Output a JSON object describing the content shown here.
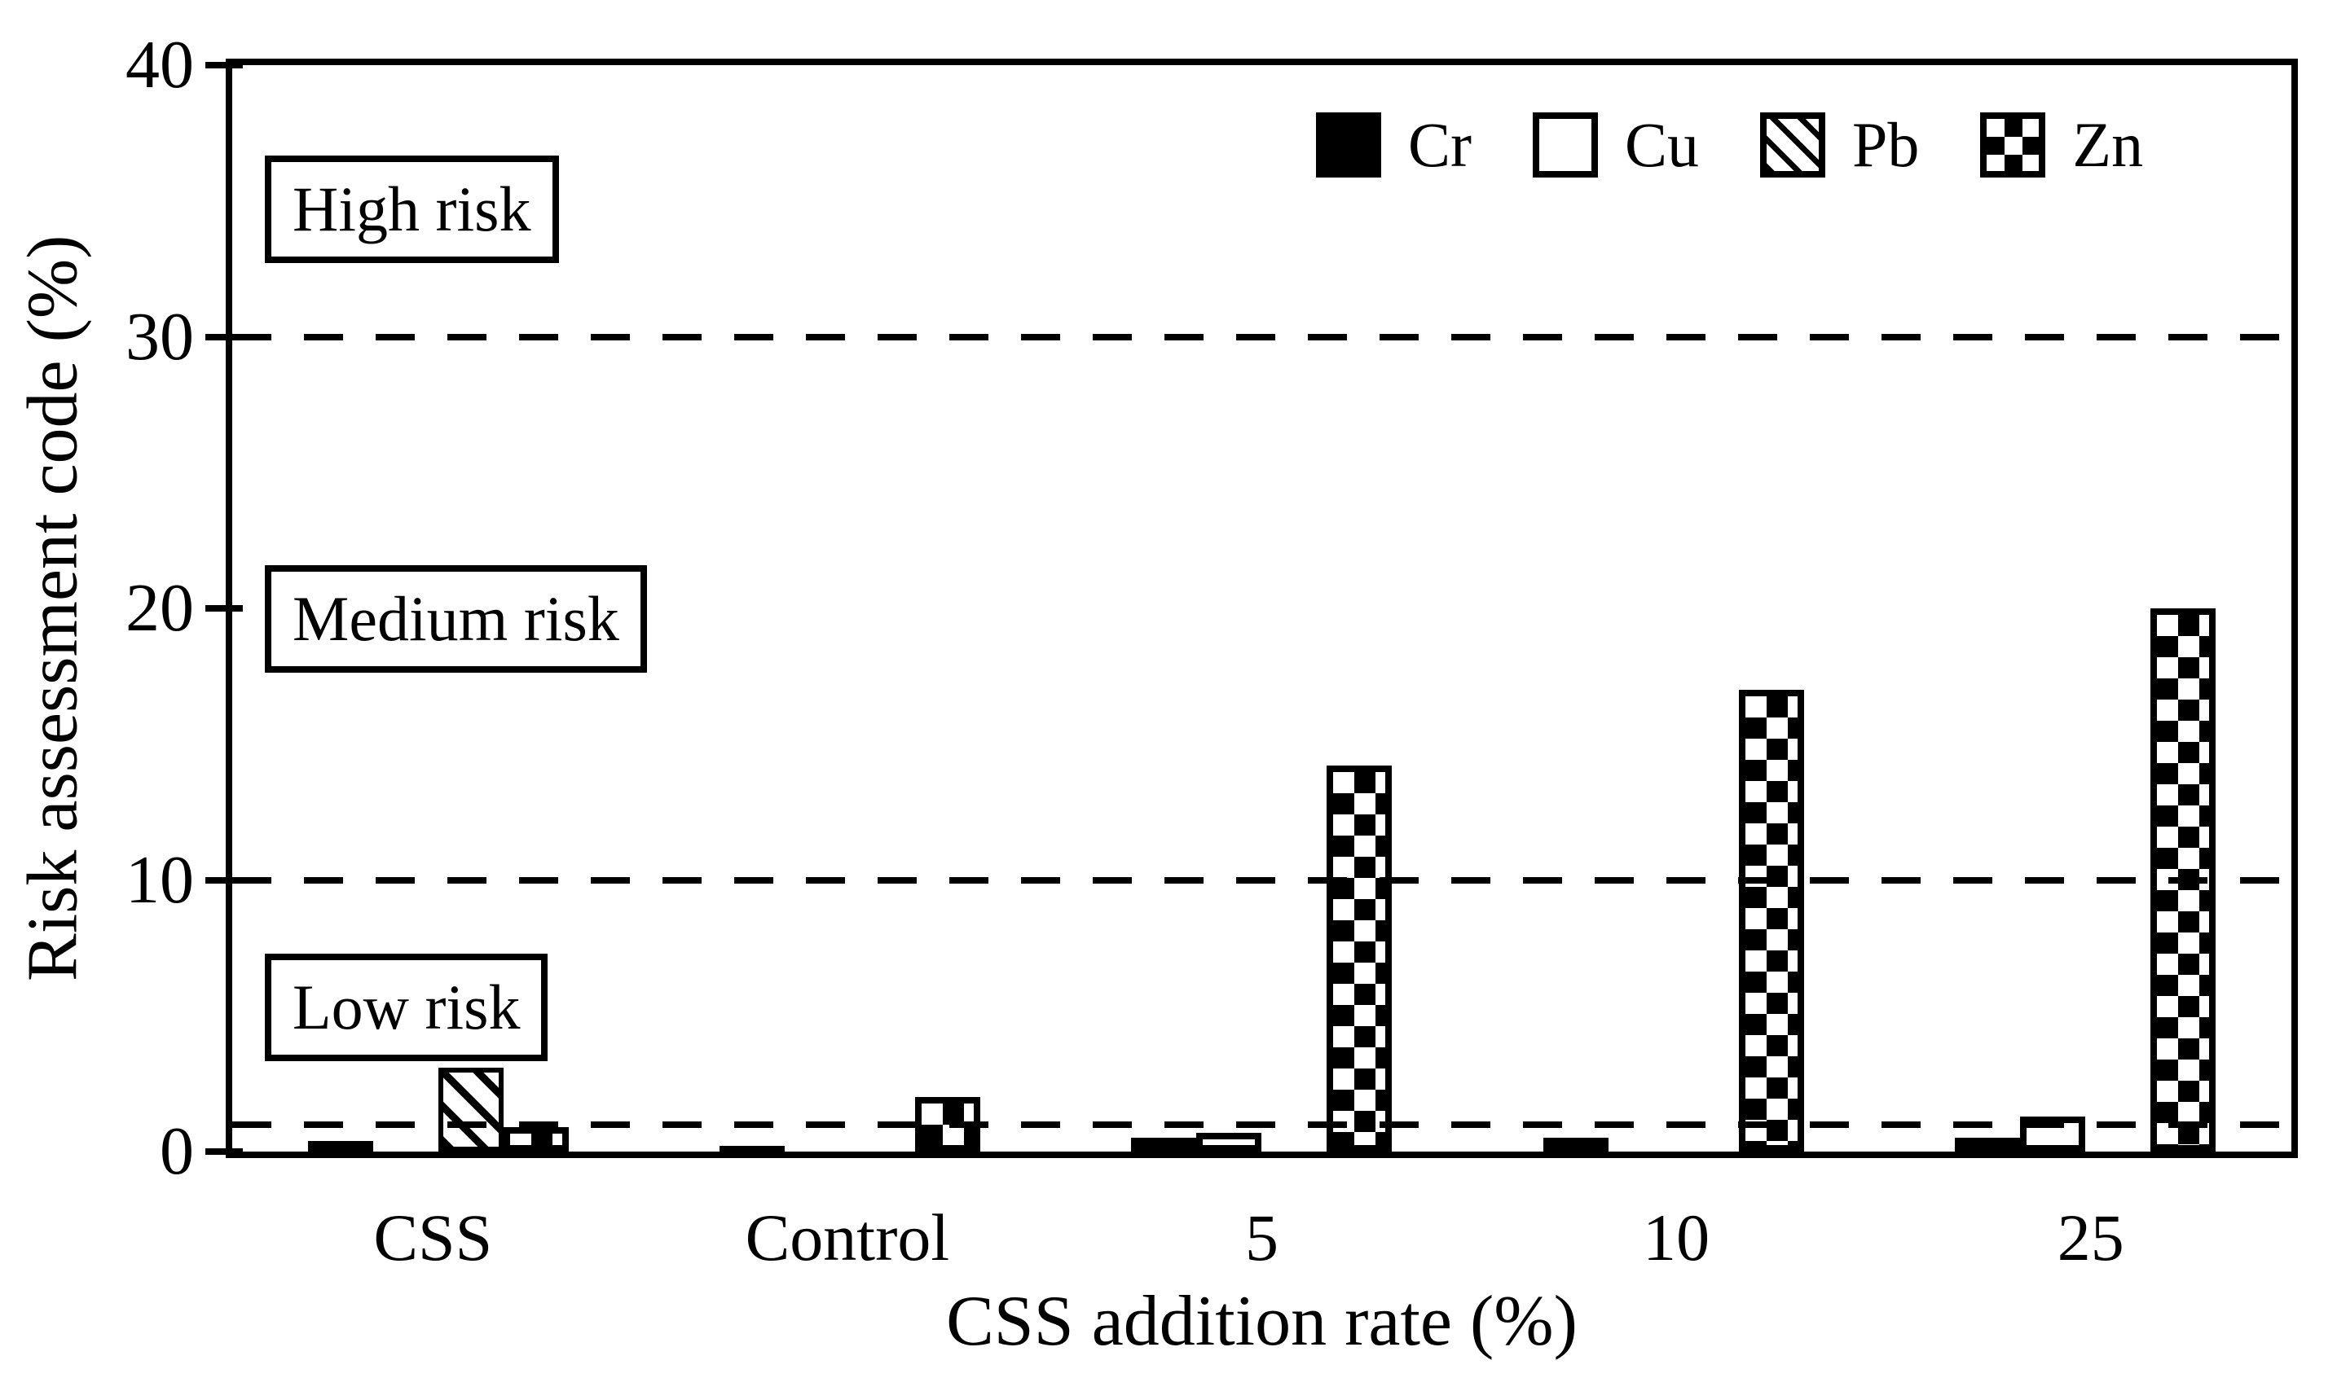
{
  "colors": {
    "foreground": "#000000",
    "background": "#ffffff"
  },
  "chart_data": {
    "type": "bar",
    "title": "",
    "xlabel": "CSS addition rate (%)",
    "ylabel": "Risk assessment code (%)",
    "categories": [
      "CSS",
      "Control",
      "5",
      "10",
      "25"
    ],
    "series": [
      {
        "name": "Cr",
        "pattern": "solid-black",
        "values": [
          0.4,
          0.2,
          0.5,
          0.5,
          0.5
        ]
      },
      {
        "name": "Cu",
        "pattern": "white-outline",
        "values": [
          0,
          0,
          0.7,
          0,
          1.3
        ]
      },
      {
        "name": "Pb",
        "pattern": "diagonal-hatch",
        "values": [
          3.1,
          0,
          0,
          0,
          0
        ]
      },
      {
        "name": "Zn",
        "pattern": "checkerboard",
        "values": [
          0.9,
          2.0,
          14.2,
          17.0,
          20.0
        ]
      }
    ],
    "ylim": [
      0,
      40
    ],
    "yticks": [
      0,
      10,
      20,
      30,
      40
    ],
    "grid": "off",
    "reference_lines": [
      {
        "y": 1,
        "style": "dashed"
      },
      {
        "y": 10,
        "style": "dashed"
      },
      {
        "y": 30,
        "style": "dashed"
      }
    ],
    "annotations": [
      {
        "label": "High risk",
        "y": 34.7
      },
      {
        "label": "Medium risk",
        "y": 19.6
      },
      {
        "label": "Low risk",
        "y": 5.3
      }
    ],
    "legend_position": "top-right-inside"
  }
}
